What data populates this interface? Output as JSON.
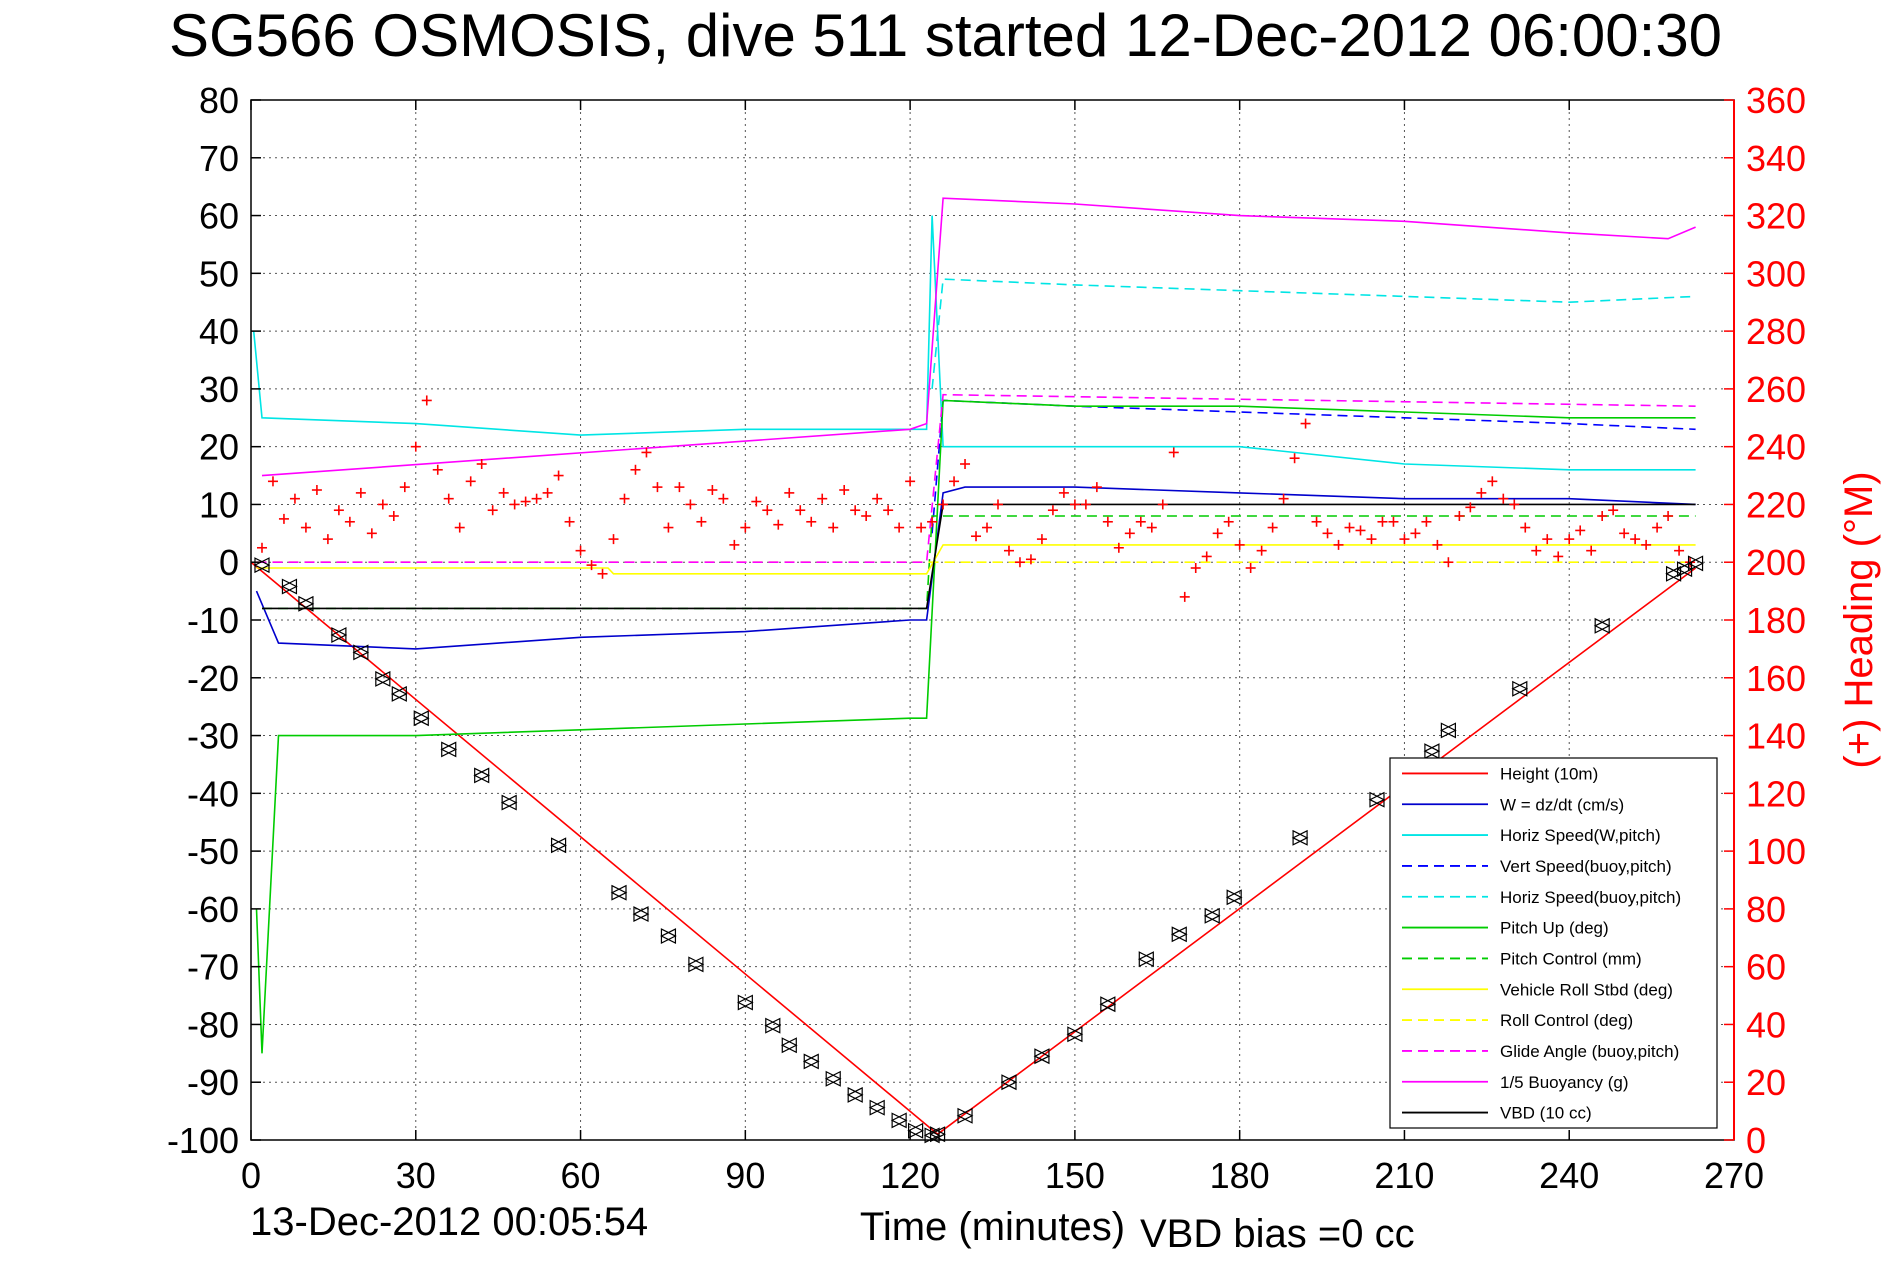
{
  "title": "SG566 OSMOSIS, dive 511 started 12-Dec-2012 06:00:30",
  "footer": {
    "timestamp": "13-Dec-2012 00:05:54",
    "vbd_bias": "VBD bias =0 cc"
  },
  "colors": {
    "height": "#ff0000",
    "w": "#0000cc",
    "horiz_speed": "#00e5e5",
    "pitch": "#00cc00",
    "roll": "#ffff00",
    "buoyancy": "#ff00ff",
    "vbd": "#000000",
    "heading": "#ff0000"
  },
  "chart_data": {
    "type": "line",
    "xlabel": "Time (minutes)",
    "ylabel_right": "(+) Heading (°M)",
    "xlim": [
      0,
      270
    ],
    "ylim": [
      -100,
      80
    ],
    "ylim_right": [
      0,
      360
    ],
    "xticks": [
      "0",
      "30",
      "60",
      "90",
      "120",
      "150",
      "180",
      "210",
      "240",
      "270"
    ],
    "yticks": [
      "80",
      "70",
      "60",
      "50",
      "40",
      "30",
      "20",
      "10",
      "0",
      "-10",
      "-20",
      "-30",
      "-40",
      "-50",
      "-60",
      "-70",
      "-80",
      "-90",
      "-100"
    ],
    "yticks_right": [
      "360",
      "340",
      "320",
      "300",
      "280",
      "260",
      "240",
      "220",
      "200",
      "180",
      "160",
      "140",
      "120",
      "100",
      "80",
      "60",
      "40",
      "20",
      "0"
    ],
    "grid": true,
    "legend_position": "bottom-right",
    "series": [
      {
        "name": "Height (10m)",
        "color": "#ff0000",
        "style": "solid",
        "x": [
          0,
          125,
          263
        ],
        "y": [
          0,
          -99,
          -1
        ]
      },
      {
        "name": "W = dz/dt (cm/s)",
        "color": "#0000cc",
        "style": "solid",
        "x": [
          1,
          5,
          30,
          60,
          90,
          120,
          123,
          126,
          130,
          150,
          180,
          210,
          240,
          263
        ],
        "y": [
          -5,
          -14,
          -15,
          -13,
          -12,
          -10,
          -10,
          12,
          13,
          13,
          12,
          11,
          11,
          10
        ]
      },
      {
        "name": "Horiz Speed(W,pitch)",
        "color": "#00e5e5",
        "style": "solid",
        "x": [
          0.5,
          2,
          30,
          60,
          90,
          120,
          123,
          124,
          126,
          150,
          180,
          210,
          240,
          263
        ],
        "y": [
          40,
          25,
          24,
          22,
          23,
          23,
          23,
          60,
          20,
          20,
          20,
          17,
          16,
          16
        ]
      },
      {
        "name": "Vert Speed(buoy,pitch)",
        "color": "#0000ff",
        "style": "dashed",
        "x": [
          124,
          126,
          150,
          180,
          210,
          240,
          263
        ],
        "y": [
          5,
          28,
          27,
          26,
          25,
          24,
          23
        ]
      },
      {
        "name": "Horiz Speed(buoy,pitch)",
        "color": "#00e5e5",
        "style": "dashed",
        "x": [
          124,
          126,
          150,
          180,
          210,
          240,
          263
        ],
        "y": [
          30,
          49,
          48,
          47,
          46,
          45,
          46
        ]
      },
      {
        "name": "Pitch Up (deg)",
        "color": "#00cc00",
        "style": "solid",
        "x": [
          1,
          2,
          5,
          30,
          60,
          90,
          120,
          123,
          126,
          150,
          180,
          210,
          240,
          263
        ],
        "y": [
          -60,
          -85,
          -30,
          -30,
          -29,
          -28,
          -27,
          -27,
          28,
          27,
          27,
          26,
          25,
          25
        ]
      },
      {
        "name": "Pitch Control (mm)",
        "color": "#00cc00",
        "style": "dashed",
        "x": [
          2,
          123,
          124,
          263
        ],
        "y": [
          -8,
          -8,
          8,
          8
        ]
      },
      {
        "name": "Vehicle Roll Stbd (deg)",
        "color": "#ffff00",
        "style": "solid",
        "x": [
          1,
          65,
          66,
          123,
          126,
          263
        ],
        "y": [
          -1,
          -1,
          -2,
          -2,
          3,
          3
        ]
      },
      {
        "name": "Roll Control (deg)",
        "color": "#ffff00",
        "style": "dashed",
        "x": [
          1,
          263
        ],
        "y": [
          0,
          0
        ]
      },
      {
        "name": "Glide Angle (buoy,pitch)",
        "color": "#ff00ff",
        "style": "dashed",
        "x": [
          1,
          123,
          126,
          263
        ],
        "y": [
          0,
          0,
          29,
          27
        ]
      },
      {
        "name": "1/5 Buoyancy (g)",
        "color": "#ff00ff",
        "style": "solid",
        "x": [
          2,
          120,
          123,
          126,
          150,
          180,
          210,
          240,
          258,
          263
        ],
        "y": [
          15,
          23,
          24,
          63,
          62,
          60,
          59,
          57,
          56,
          58
        ]
      },
      {
        "name": "VBD (10 cc)",
        "color": "#000000",
        "style": "solid",
        "x": [
          2,
          123,
          126,
          263
        ],
        "y": [
          -8,
          -8,
          10,
          10
        ]
      }
    ],
    "heading_points": {
      "axis": "right",
      "color": "#ff0000",
      "x": [
        2,
        4,
        6,
        8,
        10,
        12,
        14,
        16,
        18,
        20,
        22,
        24,
        26,
        28,
        30,
        32,
        34,
        36,
        38,
        40,
        42,
        44,
        46,
        48,
        50,
        52,
        54,
        56,
        58,
        60,
        62,
        64,
        66,
        68,
        70,
        72,
        74,
        76,
        78,
        80,
        82,
        84,
        86,
        88,
        90,
        92,
        94,
        96,
        98,
        100,
        102,
        104,
        106,
        108,
        110,
        112,
        114,
        116,
        118,
        120,
        122,
        124,
        126,
        128,
        130,
        132,
        134,
        136,
        138,
        140,
        142,
        144,
        146,
        148,
        150,
        152,
        154,
        156,
        158,
        160,
        162,
        164,
        166,
        168,
        170,
        172,
        174,
        176,
        178,
        180,
        182,
        184,
        186,
        188,
        190,
        192,
        194,
        196,
        198,
        200,
        202,
        204,
        206,
        208,
        210,
        212,
        214,
        216,
        218,
        220,
        222,
        224,
        226,
        228,
        230,
        232,
        234,
        236,
        238,
        240,
        242,
        244,
        246,
        248,
        250,
        252,
        254,
        256,
        258,
        260,
        262
      ],
      "y": [
        205,
        228,
        215,
        222,
        212,
        225,
        208,
        218,
        214,
        224,
        210,
        220,
        216,
        226,
        240,
        256,
        232,
        222,
        212,
        228,
        234,
        218,
        224,
        220,
        221,
        222,
        224,
        230,
        214,
        204,
        199,
        196,
        208,
        222,
        232,
        238,
        226,
        212,
        226,
        220,
        214,
        225,
        222,
        206,
        212,
        221,
        218,
        213,
        224,
        218,
        214,
        222,
        212,
        225,
        218,
        216,
        222,
        218,
        212,
        228,
        212,
        214,
        220,
        228,
        234,
        209,
        212,
        220,
        204,
        200,
        201,
        208,
        218,
        224,
        220,
        220,
        226,
        214,
        205,
        210,
        214,
        212,
        220,
        238,
        188,
        198,
        202,
        210,
        214,
        206,
        198,
        204,
        212,
        222,
        236,
        248,
        214,
        210,
        206,
        212,
        211,
        208,
        214,
        214,
        208,
        210,
        214,
        206,
        200,
        216,
        219,
        224,
        228,
        222,
        220,
        212,
        204,
        208,
        202,
        208,
        211,
        204,
        216,
        218,
        210,
        208,
        206,
        212,
        216,
        204,
        200
      ]
    },
    "vbd_markers": {
      "color": "#000000",
      "x": [
        2,
        7,
        10,
        16,
        20,
        24,
        27,
        31,
        36,
        42,
        47,
        56,
        67,
        71,
        76,
        81,
        90,
        95,
        98,
        102,
        106,
        110,
        114,
        118,
        121,
        124,
        125,
        130,
        138,
        144,
        150,
        156,
        163,
        169,
        175,
        179,
        191,
        205,
        215,
        218,
        231,
        246,
        259,
        261,
        263
      ],
      "y": [
        -0.5,
        -4.2,
        -7.2,
        -12.6,
        -15.6,
        -20.2,
        -22.8,
        -27,
        -32.4,
        -36.9,
        -41.6,
        -49,
        -57.2,
        -60.9,
        -64.7,
        -69.6,
        -76.2,
        -80.2,
        -83.6,
        -86.4,
        -89.4,
        -92.2,
        -94.4,
        -96.6,
        -98.4,
        -99.2,
        -99,
        -95.8,
        -90,
        -85.5,
        -81.7,
        -76.5,
        -68.7,
        -64.4,
        -61.2,
        -58,
        -47.7,
        -41.1,
        -32.7,
        -29.1,
        -21.9,
        -11,
        -2,
        -1.2,
        -0.2
      ]
    },
    "legend": [
      {
        "label": "Height (10m)",
        "color": "#ff0000",
        "style": "solid"
      },
      {
        "label": "W = dz/dt (cm/s)",
        "color": "#0000cc",
        "style": "solid"
      },
      {
        "label": "Horiz Speed(W,pitch)",
        "color": "#00e5e5",
        "style": "solid"
      },
      {
        "label": "Vert Speed(buoy,pitch)",
        "color": "#0000ff",
        "style": "dashed"
      },
      {
        "label": "Horiz Speed(buoy,pitch)",
        "color": "#00e5e5",
        "style": "dashed"
      },
      {
        "label": "Pitch Up (deg)",
        "color": "#00cc00",
        "style": "solid"
      },
      {
        "label": "Pitch Control (mm)",
        "color": "#00cc00",
        "style": "dashed"
      },
      {
        "label": "Vehicle Roll Stbd (deg)",
        "color": "#ffff00",
        "style": "solid"
      },
      {
        "label": "Roll Control (deg)",
        "color": "#ffff00",
        "style": "dashed"
      },
      {
        "label": "Glide Angle (buoy,pitch)",
        "color": "#ff00ff",
        "style": "dashed"
      },
      {
        "label": "1/5 Buoyancy (g)",
        "color": "#ff00ff",
        "style": "solid"
      },
      {
        "label": "VBD (10 cc)",
        "color": "#000000",
        "style": "solid"
      }
    ]
  }
}
